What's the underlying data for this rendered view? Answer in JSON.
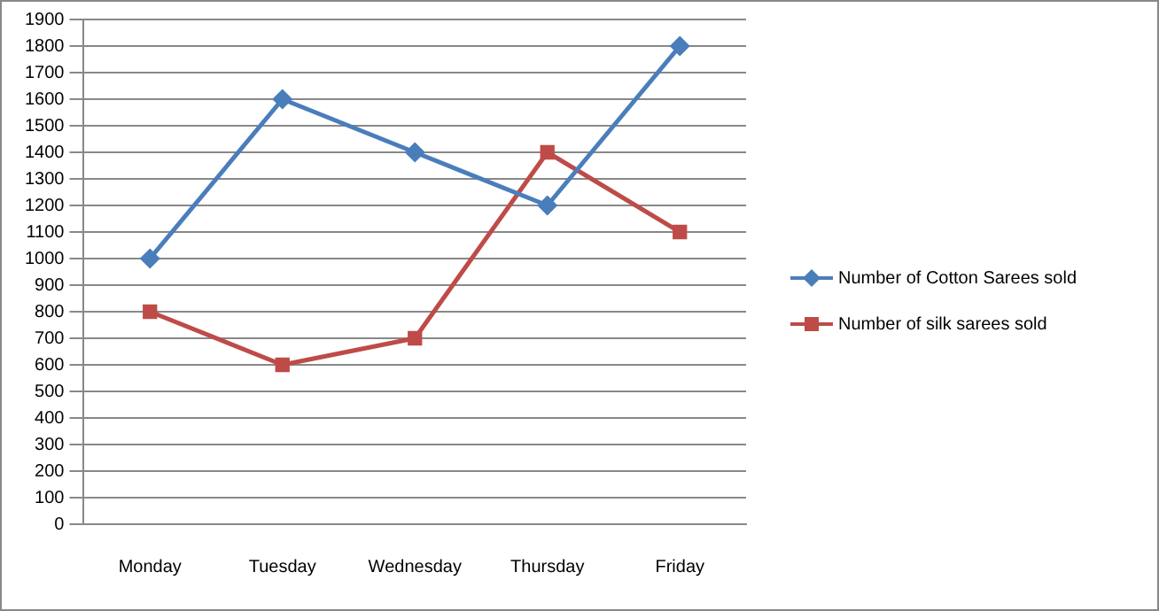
{
  "chart_data": {
    "type": "line",
    "categories": [
      "Monday",
      "Tuesday",
      "Wednesday",
      "Thursday",
      "Friday"
    ],
    "series": [
      {
        "name": "Number of Cotton Sarees sold",
        "color": "#4a7ebb",
        "values": [
          1000,
          1600,
          1400,
          1200,
          1800
        ],
        "marker": "diamond"
      },
      {
        "name": "Number of silk sarees sold",
        "color": "#be4b48",
        "values": [
          800,
          600,
          700,
          1400,
          1100
        ],
        "marker": "square"
      }
    ],
    "ylim": [
      0,
      1900
    ],
    "yticks": [
      0,
      100,
      200,
      300,
      400,
      500,
      600,
      700,
      800,
      900,
      1000,
      1100,
      1200,
      1300,
      1400,
      1500,
      1600,
      1700,
      1800,
      1900
    ],
    "grid": "y",
    "legend": "right"
  }
}
